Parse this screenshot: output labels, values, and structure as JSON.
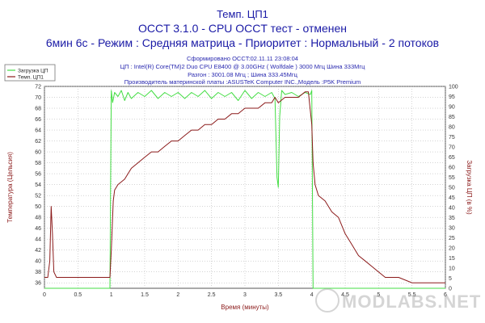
{
  "titles": {
    "line1": "Темп. ЦП1",
    "line2": "OCCT 3.1.0 - CPU OCCT тест - отменен",
    "line3": "6мин 6с - Режим : Средняя матрица - Приоритет : Нормальный - 2 потоков"
  },
  "info": {
    "generated": "Сформировано OCCT:02.11.11 23:08:04",
    "cpu": "ЦП : Intel(R) Core(TM)2 Duo CPU E8400 @ 3.00GHz ( Wolfdale ) 3000 Мгц Шина 333Мгц",
    "overclock": "Разгон : 3001.08 Мгц ; Шина 333.45Мгц",
    "motherboard": "Производитель материнской платы :ASUSTeK Computer INC.,Модель :P5K Premium"
  },
  "watermark": "MODLABS.NET",
  "colors": {
    "temperature": "#8b1a1a",
    "load": "#44dd44",
    "title": "#1a1aa6",
    "axis_text": "#333333",
    "grid": "#aaaaaa"
  },
  "chart_data": {
    "type": "line",
    "xlabel": "Время (минуты)",
    "ylabel_left": "Температура (Цельсия)",
    "ylabel_right": "Загрузка ЦП (в %)",
    "xlim": [
      0,
      6
    ],
    "ylim_left": [
      35,
      72
    ],
    "ylim_right": [
      0,
      100
    ],
    "x_ticks": [
      0,
      0.5,
      1,
      1.5,
      2,
      2.5,
      3,
      3.5,
      4,
      4.5,
      5,
      5.5,
      6
    ],
    "y_ticks_left": [
      36,
      38,
      40,
      42,
      44,
      46,
      48,
      50,
      52,
      54,
      56,
      58,
      60,
      62,
      64,
      66,
      68,
      70,
      72
    ],
    "y_ticks_right": [
      0,
      5,
      10,
      15,
      20,
      25,
      30,
      35,
      40,
      45,
      50,
      55,
      60,
      65,
      70,
      75,
      80,
      85,
      90,
      95,
      100
    ],
    "grid": true,
    "legend_position": "top-left",
    "series": [
      {
        "name": "Загрузка ЦП",
        "axis": "right",
        "x": [
          0,
          0.98,
          0.99,
          1.0,
          1.02,
          1.05,
          1.1,
          1.15,
          1.2,
          1.25,
          1.3,
          1.4,
          1.5,
          1.6,
          1.7,
          1.8,
          1.9,
          2.0,
          2.1,
          2.2,
          2.3,
          2.4,
          2.5,
          2.6,
          2.7,
          2.8,
          2.9,
          3.0,
          3.1,
          3.2,
          3.3,
          3.4,
          3.45,
          3.48,
          3.5,
          3.52,
          3.55,
          3.6,
          3.7,
          3.8,
          3.9,
          3.98,
          4.0,
          4.01,
          4.02,
          4.05,
          4.5,
          5.0,
          5.5,
          6.0
        ],
        "y": [
          0,
          0,
          50,
          98,
          92,
          97,
          95,
          98,
          93,
          97,
          94,
          97,
          95,
          98,
          94,
          97,
          95,
          97,
          94,
          97,
          95,
          98,
          94,
          97,
          95,
          97,
          93,
          98,
          94,
          97,
          95,
          97,
          94,
          55,
          50,
          85,
          98,
          96,
          97,
          95,
          97,
          96,
          98,
          50,
          0,
          0,
          0,
          0,
          0,
          0
        ]
      },
      {
        "name": "Темп. ЦП1",
        "axis": "left",
        "x": [
          0,
          0.05,
          0.08,
          0.1,
          0.12,
          0.14,
          0.18,
          0.25,
          0.5,
          0.75,
          0.98,
          1.0,
          1.03,
          1.05,
          1.1,
          1.2,
          1.3,
          1.4,
          1.5,
          1.6,
          1.7,
          1.8,
          1.9,
          2.0,
          2.1,
          2.2,
          2.3,
          2.4,
          2.5,
          2.6,
          2.7,
          2.8,
          2.9,
          3.0,
          3.1,
          3.2,
          3.3,
          3.4,
          3.45,
          3.5,
          3.6,
          3.7,
          3.8,
          3.9,
          3.95,
          4.0,
          4.02,
          4.05,
          4.1,
          4.2,
          4.3,
          4.4,
          4.5,
          4.6,
          4.7,
          4.8,
          4.9,
          5.0,
          5.1,
          5.2,
          5.3,
          5.5,
          5.7,
          5.9,
          6.0
        ],
        "y": [
          37,
          37,
          40,
          50,
          45,
          38,
          37,
          37,
          37,
          37,
          37,
          42,
          51,
          53,
          54,
          55,
          57,
          58,
          59,
          60,
          60,
          61,
          62,
          62,
          63,
          64,
          64,
          65,
          65,
          66,
          66,
          67,
          67,
          68,
          68,
          68,
          69,
          69,
          70,
          69,
          70,
          70,
          70,
          71,
          71,
          65,
          58,
          54,
          52,
          51,
          49,
          48,
          45,
          43,
          41,
          40,
          39,
          38,
          37,
          37,
          37,
          36,
          36,
          36,
          36
        ]
      }
    ]
  }
}
